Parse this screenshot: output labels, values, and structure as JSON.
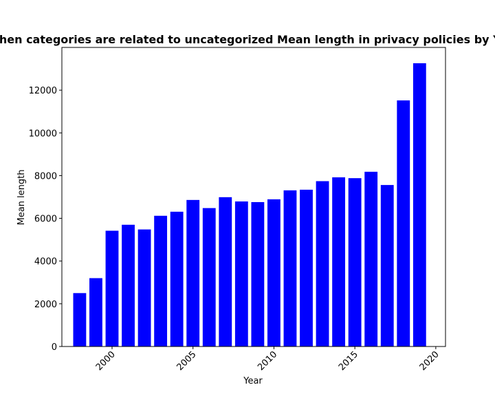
{
  "chart_data": {
    "type": "bar",
    "title": "When categories are related to uncategorized Mean length in privacy policies by Year",
    "xlabel": "Year",
    "ylabel": "Mean length",
    "x": [
      1998,
      1999,
      2000,
      2001,
      2002,
      2003,
      2004,
      2005,
      2006,
      2007,
      2008,
      2009,
      2010,
      2011,
      2012,
      2013,
      2014,
      2015,
      2016,
      2017,
      2018,
      2019
    ],
    "values": [
      2500,
      3200,
      5420,
      5700,
      5480,
      6120,
      6310,
      6860,
      6480,
      6990,
      6790,
      6760,
      6890,
      7310,
      7340,
      7740,
      7920,
      7880,
      8180,
      7560,
      11520,
      13260
    ],
    "xlim": [
      1996.9,
      2020.6
    ],
    "ylim": [
      0,
      14000
    ],
    "xticks": [
      2000,
      2005,
      2010,
      2015,
      2020
    ],
    "xtick_labels": [
      "2000",
      "2005",
      "2010",
      "2015",
      "2020"
    ],
    "yticks": [
      0,
      2000,
      4000,
      6000,
      8000,
      10000,
      12000
    ],
    "ytick_labels": [
      "0",
      "2000",
      "4000",
      "6000",
      "8000",
      "10000",
      "12000"
    ],
    "bar_color": "#0000ff",
    "grid": false,
    "legend": "none"
  }
}
